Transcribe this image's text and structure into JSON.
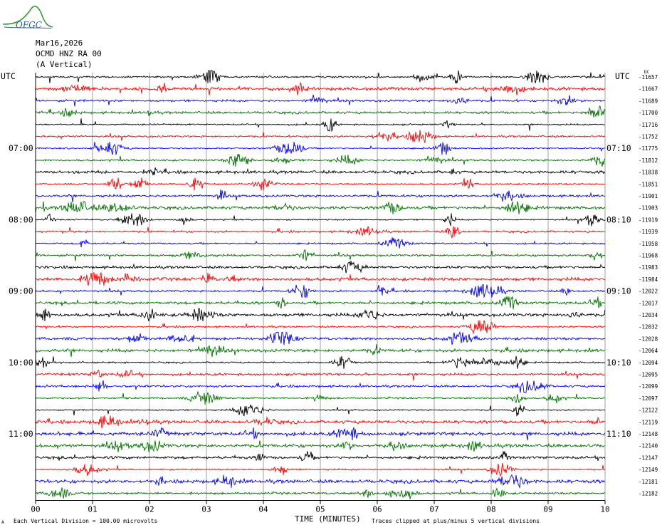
{
  "header": {
    "logo_text": "OFGC",
    "date": "Mar16,2026",
    "station": "OCMD HNZ RA 00",
    "component": "(A Vertical)"
  },
  "footer": {
    "scale_note": "Each Vertical Division =  100.00 microvolts",
    "clip_note": "Traces clipped at plus/minus 5 vertical divisions",
    "corner_mark": "A"
  },
  "colors": {
    "trace_cycle": [
      "#000000",
      "#ff0000",
      "#0000ff",
      "#007000"
    ],
    "grid": "#888888"
  },
  "chart_data": {
    "type": "line",
    "xlabel": "TIME (MINUTES)",
    "x_ticks": [
      "00",
      "01",
      "02",
      "03",
      "04",
      "05",
      "06",
      "07",
      "08",
      "09",
      "10"
    ],
    "xlim": [
      0,
      10
    ],
    "left_axis_label": "UTC",
    "right_axis_label": "UTC",
    "left_hour_labels": [
      "07:00",
      "08:00",
      "09:00",
      "10:00",
      "11:00"
    ],
    "right_hour_labels": [
      "07:10",
      "08:10",
      "09:10",
      "10:10",
      "11:10"
    ],
    "hour_label_row_index": [
      6,
      12,
      18,
      24,
      30
    ],
    "dc_header": "DC",
    "trace_offsets": [
      "-11657",
      "-11667",
      "-11689",
      "-11700",
      "-11716",
      "-11752",
      "-11775",
      "-11812",
      "-11838",
      "-11851",
      "-11901",
      "-11903",
      "-11919",
      "-11939",
      "-11958",
      "-11968",
      "-11983",
      "-11984",
      "-12022",
      "-12017",
      "-12034",
      "-12032",
      "-12028",
      "-12064",
      "-12094",
      "-12095",
      "-12099",
      "-12097",
      "-12122",
      "-12119",
      "-12148",
      "-12140",
      "-12147",
      "-12149",
      "-12181",
      "-12182"
    ]
  }
}
